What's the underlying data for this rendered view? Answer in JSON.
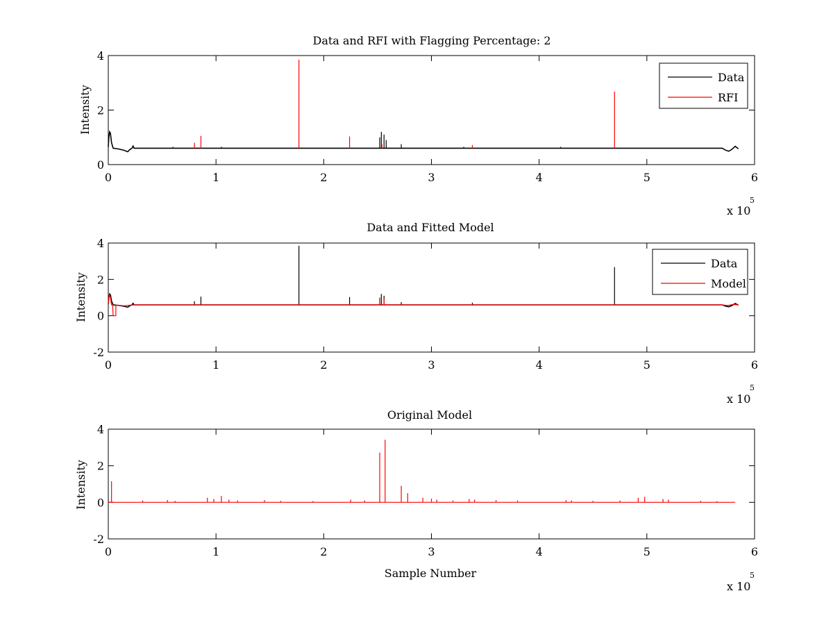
{
  "figure": {
    "background": "#ffffff"
  },
  "chart_data": [
    {
      "type": "line",
      "title": "Data and RFI with Flagging Percentage: 2",
      "xlabel": "",
      "ylabel": "Intensity",
      "xlim": [
        0,
        6
      ],
      "ylim": [
        0,
        4
      ],
      "xticks": [
        "0",
        "1",
        "2",
        "3",
        "4",
        "5",
        "6"
      ],
      "yticks": [
        "0",
        "2",
        "4"
      ],
      "x_exponent_label": "x 10",
      "x_exponent_power": "5",
      "legend": {
        "position": "top-right",
        "entries": [
          {
            "label": "Data",
            "color": "#000000"
          },
          {
            "label": "RFI",
            "color": "#ff0000"
          }
        ]
      },
      "series": [
        {
          "name": "Data",
          "color": "#000000",
          "baseline": 0.6,
          "start_curve": [
            [
              0.0,
              0.65
            ],
            [
              0.005,
              1.0
            ],
            [
              0.012,
              1.2
            ],
            [
              0.02,
              1.15
            ],
            [
              0.03,
              0.8
            ],
            [
              0.045,
              0.6
            ],
            [
              0.1,
              0.57
            ],
            [
              0.15,
              0.52
            ],
            [
              0.18,
              0.47
            ],
            [
              0.2,
              0.55
            ],
            [
              0.22,
              0.6
            ],
            [
              0.23,
              0.68
            ],
            [
              0.24,
              0.6
            ]
          ],
          "end_curve": [
            [
              5.7,
              0.6
            ],
            [
              5.73,
              0.53
            ],
            [
              5.76,
              0.49
            ],
            [
              5.79,
              0.56
            ],
            [
              5.82,
              0.67
            ],
            [
              5.85,
              0.58
            ]
          ],
          "x_end": 5.85,
          "spikes": [
            [
              2.52,
              1.0
            ],
            [
              2.535,
              1.2
            ],
            [
              2.56,
              1.1
            ],
            [
              2.58,
              0.9
            ],
            [
              2.72,
              0.75
            ],
            [
              0.6,
              0.65
            ],
            [
              1.05,
              0.65
            ],
            [
              3.3,
              0.65
            ],
            [
              4.2,
              0.65
            ]
          ]
        },
        {
          "name": "RFI",
          "color": "#ff0000",
          "spikes": [
            [
              0.8,
              0.8
            ],
            [
              0.86,
              1.05
            ],
            [
              1.77,
              3.85
            ],
            [
              2.24,
              1.03
            ],
            [
              2.54,
              0.75
            ],
            [
              3.38,
              0.72
            ],
            [
              4.7,
              2.68
            ]
          ]
        }
      ]
    },
    {
      "type": "line",
      "title": "Data and Fitted Model",
      "xlabel": "",
      "ylabel": "Intensity",
      "xlim": [
        0,
        6
      ],
      "ylim": [
        -2,
        4
      ],
      "xticks": [
        "0",
        "1",
        "2",
        "3",
        "4",
        "5",
        "6"
      ],
      "yticks": [
        "-2",
        "0",
        "2",
        "4"
      ],
      "x_exponent_label": "x 10",
      "x_exponent_power": "5",
      "legend": {
        "position": "top-right",
        "entries": [
          {
            "label": "Data",
            "color": "#000000"
          },
          {
            "label": "Model",
            "color": "#ff0000"
          }
        ]
      },
      "series": [
        {
          "name": "Data",
          "color": "#000000",
          "baseline": 0.6,
          "start_curve": [
            [
              0.0,
              0.65
            ],
            [
              0.005,
              1.0
            ],
            [
              0.012,
              1.2
            ],
            [
              0.02,
              1.15
            ],
            [
              0.03,
              0.8
            ],
            [
              0.045,
              0.6
            ],
            [
              0.1,
              0.57
            ],
            [
              0.15,
              0.52
            ],
            [
              0.18,
              0.47
            ],
            [
              0.2,
              0.55
            ],
            [
              0.22,
              0.6
            ],
            [
              0.23,
              0.68
            ],
            [
              0.24,
              0.6
            ]
          ],
          "end_curve": [
            [
              5.7,
              0.6
            ],
            [
              5.73,
              0.53
            ],
            [
              5.76,
              0.49
            ],
            [
              5.79,
              0.56
            ],
            [
              5.82,
              0.67
            ],
            [
              5.85,
              0.58
            ]
          ],
          "x_end": 5.85,
          "spikes": [
            [
              0.8,
              0.8
            ],
            [
              0.86,
              1.05
            ],
            [
              1.77,
              3.85
            ],
            [
              2.24,
              1.03
            ],
            [
              2.52,
              1.0
            ],
            [
              2.535,
              1.2
            ],
            [
              2.56,
              1.1
            ],
            [
              2.72,
              0.75
            ],
            [
              3.38,
              0.72
            ],
            [
              4.7,
              2.68
            ]
          ]
        },
        {
          "name": "Model",
          "color": "#ff0000",
          "baseline": 0.6,
          "start_curve": [
            [
              0.0,
              0.65
            ],
            [
              0.006,
              1.05
            ],
            [
              0.012,
              1.15
            ],
            [
              0.02,
              1.0
            ],
            [
              0.03,
              0.6
            ],
            [
              0.04,
              0.6
            ],
            [
              0.045,
              0.0
            ],
            [
              0.07,
              0.0
            ],
            [
              0.07,
              0.58
            ],
            [
              0.15,
              0.55
            ],
            [
              0.2,
              0.58
            ],
            [
              0.24,
              0.6
            ]
          ],
          "end_curve": [
            [
              5.7,
              0.62
            ],
            [
              5.75,
              0.56
            ],
            [
              5.8,
              0.62
            ],
            [
              5.85,
              0.6
            ]
          ],
          "x_end": 5.85,
          "spikes": [
            [
              2.52,
              1.0
            ],
            [
              2.56,
              0.95
            ]
          ]
        }
      ]
    },
    {
      "type": "line",
      "title": "Original Model",
      "xlabel": "Sample Number",
      "ylabel": "Intensity",
      "xlim": [
        0,
        6
      ],
      "ylim": [
        -2,
        4
      ],
      "xticks": [
        "0",
        "1",
        "2",
        "3",
        "4",
        "5",
        "6"
      ],
      "yticks": [
        "-2",
        "0",
        "2",
        "4"
      ],
      "x_exponent_label": "x 10",
      "x_exponent_power": "5",
      "series": [
        {
          "color": "#ff0000",
          "baseline": 0.0,
          "x_start": 0.0,
          "x_end": 5.82,
          "spikes": [
            [
              0.03,
              1.15
            ],
            [
              0.32,
              0.1
            ],
            [
              0.55,
              0.12
            ],
            [
              0.62,
              0.08
            ],
            [
              0.92,
              0.25
            ],
            [
              0.98,
              0.18
            ],
            [
              1.05,
              0.35
            ],
            [
              1.12,
              0.15
            ],
            [
              1.2,
              0.1
            ],
            [
              1.45,
              0.12
            ],
            [
              1.6,
              0.08
            ],
            [
              1.9,
              0.07
            ],
            [
              2.25,
              0.15
            ],
            [
              2.38,
              0.1
            ],
            [
              2.52,
              2.72
            ],
            [
              2.57,
              3.42
            ],
            [
              2.72,
              0.9
            ],
            [
              2.78,
              0.5
            ],
            [
              2.92,
              0.25
            ],
            [
              3.0,
              0.2
            ],
            [
              3.05,
              0.15
            ],
            [
              3.2,
              0.1
            ],
            [
              3.35,
              0.18
            ],
            [
              3.4,
              0.15
            ],
            [
              3.6,
              0.12
            ],
            [
              3.8,
              0.1
            ],
            [
              4.25,
              0.12
            ],
            [
              4.3,
              0.1
            ],
            [
              4.5,
              0.08
            ],
            [
              4.75,
              0.1
            ],
            [
              4.92,
              0.25
            ],
            [
              4.98,
              0.3
            ],
            [
              5.15,
              0.18
            ],
            [
              5.2,
              0.15
            ],
            [
              5.5,
              0.08
            ],
            [
              5.65,
              0.06
            ]
          ]
        }
      ]
    }
  ]
}
